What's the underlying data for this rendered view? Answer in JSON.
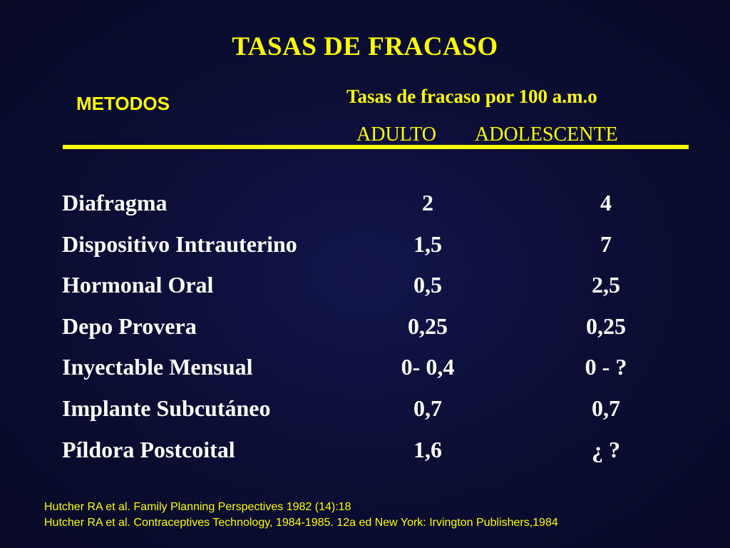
{
  "title": "TASAS DE FRACASO",
  "header": {
    "metodos": "METODOS",
    "rate_label": "Tasas de fracaso por 100 a.m.o",
    "col_adulto": "ADULTO",
    "col_adolescente": "ADOLESCENTE"
  },
  "colors": {
    "background": "#0b0d2e",
    "accent": "#ffff00",
    "text": "#ffffff"
  },
  "rows": [
    {
      "method": "Diafragma",
      "adulto": "2",
      "adolescente": "4"
    },
    {
      "method": "Dispositivo Intrauterino",
      "adulto": "1,5",
      "adolescente": "7"
    },
    {
      "method": "Hormonal Oral",
      "adulto": "0,5",
      "adolescente": "2,5"
    },
    {
      "method": "Depo Provera",
      "adulto": "0,25",
      "adolescente": "0,25"
    },
    {
      "method": "Inyectable Mensual",
      "adulto": "0- 0,4",
      "adolescente": "0 - ?"
    },
    {
      "method": "Implante Subcutáneo",
      "adulto": "0,7",
      "adolescente": "0,7"
    },
    {
      "method": "Píldora Postcoital",
      "adulto": "1,6",
      "adolescente": "¿ ?"
    }
  ],
  "references": [
    "Hutcher RA et al. Family Planning Perspectives 1982 (14):18",
    "Hutcher RA et al. Contraceptives Technology, 1984-1985. 12a ed New York: Irvington Publishers,1984"
  ]
}
